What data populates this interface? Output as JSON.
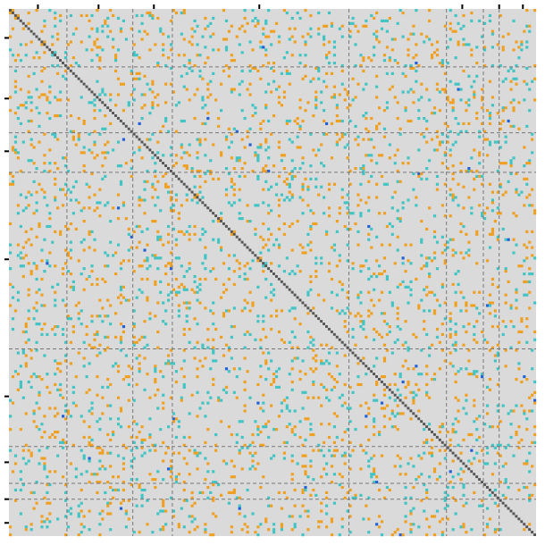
{
  "chart_data": {
    "type": "heatmap",
    "title": "",
    "xlabel": "",
    "ylabel": "",
    "grid": false,
    "n": 200,
    "block_boundaries": [
      22,
      47,
      62,
      129,
      166,
      180,
      186
    ],
    "top_tick_positions": [
      11,
      34,
      55,
      95,
      172,
      186,
      195
    ],
    "left_tick_positions": [
      11,
      34,
      54,
      95,
      147,
      172,
      186,
      195
    ],
    "value_colors": {
      "background": "#dadada",
      "positive": "#f0a020",
      "negative": "#40c4c4",
      "strong_negative": "#2060d8",
      "diagonal": "#555555",
      "block_divider": "#777777"
    },
    "cell_density": {
      "positive": 0.045,
      "negative": 0.04,
      "strong_negative": 0.0008
    },
    "diagonal": "self-correlation"
  }
}
